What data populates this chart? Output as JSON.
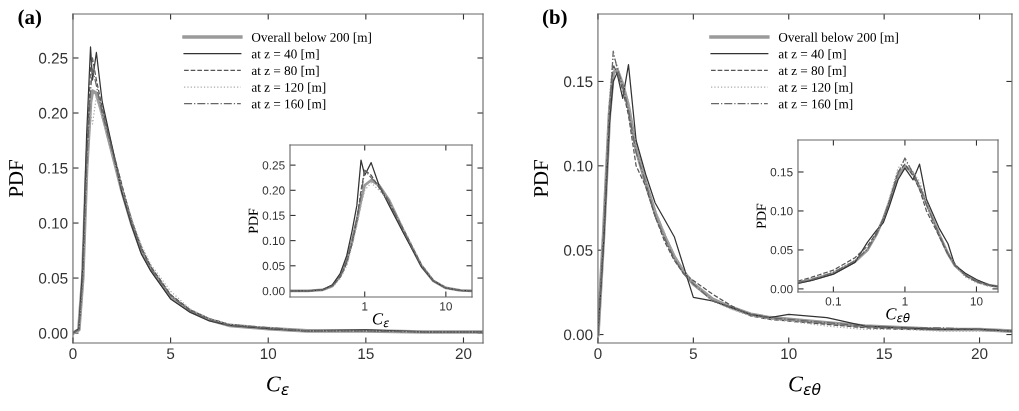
{
  "chart_data": [
    {
      "type": "line",
      "title": "(a)",
      "xlabel": "C$_{ε}$",
      "ylabel": "PDF",
      "xlim": [
        0,
        21
      ],
      "ylim": [
        -0.009,
        0.29
      ],
      "xticks": [
        0,
        5,
        10,
        15,
        20
      ],
      "yticks": [
        {
          "value": 0,
          "label": "0.00"
        },
        {
          "value": 0.05,
          "label": "0.05"
        },
        {
          "value": 0.1,
          "label": "0.10"
        },
        {
          "value": 0.15,
          "label": "0.15"
        },
        {
          "value": 0.2,
          "label": "0.20"
        },
        {
          "value": 0.25,
          "label": "0.25"
        }
      ],
      "legend": "top",
      "grid": false,
      "x": [
        0,
        0.3,
        0.5,
        0.7,
        0.9,
        1.0,
        1.2,
        1.5,
        2,
        2.5,
        3,
        3.5,
        4,
        5,
        6,
        7,
        8,
        10,
        12,
        15,
        18,
        21
      ],
      "series": [
        {
          "name": "Overall below 200 [m]",
          "color": "#9a9a9a",
          "line_style": "solid",
          "values": [
            0,
            0.003,
            0.05,
            0.15,
            0.21,
            0.22,
            0.218,
            0.2,
            0.165,
            0.13,
            0.1,
            0.075,
            0.058,
            0.033,
            0.02,
            0.012,
            0.007,
            0.004,
            0.002,
            0.002,
            0.001,
            0.001
          ]
        },
        {
          "name": "at z = 40 [m]",
          "color": "#333333",
          "line_style": "solid",
          "values": [
            0,
            0.004,
            0.06,
            0.18,
            0.26,
            0.23,
            0.255,
            0.21,
            0.17,
            0.128,
            0.098,
            0.072,
            0.056,
            0.031,
            0.019,
            0.011,
            0.007,
            0.004,
            0.002,
            0.003,
            0.001,
            0.001
          ]
        },
        {
          "name": "at z = 80 [m]",
          "color": "#555555",
          "line_style": "dashed",
          "values": [
            0,
            0.003,
            0.05,
            0.16,
            0.24,
            0.25,
            0.23,
            0.205,
            0.168,
            0.135,
            0.102,
            0.078,
            0.06,
            0.035,
            0.021,
            0.013,
            0.008,
            0.004,
            0.002,
            0.002,
            0.001,
            0.001
          ]
        },
        {
          "name": "at z = 120 [m]",
          "color": "#aaaaaa",
          "line_style": "dotted",
          "values": [
            0,
            0.002,
            0.04,
            0.14,
            0.2,
            0.19,
            0.215,
            0.195,
            0.162,
            0.132,
            0.104,
            0.08,
            0.062,
            0.038,
            0.022,
            0.013,
            0.008,
            0.005,
            0.002,
            0.002,
            0.001,
            0.001
          ]
        },
        {
          "name": "at z = 160 [m]",
          "color": "#666666",
          "line_style": "dashdot",
          "values": [
            0,
            0.003,
            0.05,
            0.15,
            0.22,
            0.24,
            0.225,
            0.2,
            0.166,
            0.13,
            0.1,
            0.076,
            0.058,
            0.034,
            0.02,
            0.012,
            0.007,
            0.005,
            0.002,
            0.002,
            0.001,
            0.001
          ]
        }
      ]
    },
    {
      "type": "line",
      "xlabel": "C$_{ε}$",
      "ylabel": "PDF",
      "log": "x",
      "xlim": [
        0.12,
        21
      ],
      "ylim": [
        -0.012,
        0.29
      ],
      "xticks": [
        1,
        10
      ],
      "yticks": [
        {
          "value": 0,
          "label": "0.00"
        },
        {
          "value": 0.05,
          "label": "0.05"
        },
        {
          "value": 0.1,
          "label": "0.10"
        },
        {
          "value": 0.15,
          "label": "0.15"
        },
        {
          "value": 0.2,
          "label": "0.20"
        },
        {
          "value": 0.25,
          "label": "0.25"
        }
      ],
      "grid": false,
      "x": [
        0.12,
        0.2,
        0.3,
        0.4,
        0.5,
        0.6,
        0.7,
        0.8,
        0.9,
        1.0,
        1.2,
        1.5,
        2,
        3,
        4,
        5,
        7,
        10,
        15,
        21
      ],
      "series": [
        {
          "color": "#9a9a9a",
          "line_style": "solid",
          "values": [
            0,
            0,
            0.002,
            0.01,
            0.03,
            0.06,
            0.1,
            0.14,
            0.18,
            0.21,
            0.22,
            0.21,
            0.18,
            0.12,
            0.08,
            0.05,
            0.02,
            0.006,
            0.001,
            0
          ]
        },
        {
          "color": "#333333",
          "line_style": "solid",
          "values": [
            0,
            0,
            0.002,
            0.012,
            0.035,
            0.07,
            0.12,
            0.17,
            0.26,
            0.23,
            0.255,
            0.21,
            0.17,
            0.115,
            0.078,
            0.048,
            0.02,
            0.006,
            0.001,
            0
          ]
        },
        {
          "color": "#555555",
          "line_style": "dashed",
          "values": [
            0,
            0,
            0.002,
            0.01,
            0.028,
            0.055,
            0.095,
            0.14,
            0.2,
            0.24,
            0.23,
            0.205,
            0.175,
            0.122,
            0.082,
            0.052,
            0.021,
            0.006,
            0.001,
            0
          ]
        },
        {
          "color": "#aaaaaa",
          "line_style": "dotted",
          "values": [
            0,
            0,
            0.001,
            0.008,
            0.025,
            0.05,
            0.09,
            0.13,
            0.17,
            0.2,
            0.215,
            0.2,
            0.18,
            0.125,
            0.085,
            0.053,
            0.022,
            0.007,
            0.001,
            0
          ]
        },
        {
          "color": "#666666",
          "line_style": "dashdot",
          "values": [
            0,
            0,
            0.002,
            0.01,
            0.03,
            0.06,
            0.1,
            0.145,
            0.19,
            0.24,
            0.225,
            0.21,
            0.178,
            0.12,
            0.08,
            0.05,
            0.02,
            0.006,
            0.001,
            0
          ]
        }
      ]
    },
    {
      "type": "line",
      "title": "(b)",
      "xlabel": "C$_{εθ}$",
      "ylabel": "PDF",
      "xlim": [
        0,
        21.7
      ],
      "ylim": [
        -0.005,
        0.19
      ],
      "xticks": [
        0,
        5,
        10,
        15,
        20
      ],
      "yticks": [
        {
          "value": 0,
          "label": "0.00"
        },
        {
          "value": 0.05,
          "label": "0.05"
        },
        {
          "value": 0.1,
          "label": "0.10"
        },
        {
          "value": 0.15,
          "label": "0.15"
        }
      ],
      "legend": "top",
      "grid": false,
      "x": [
        0,
        0.3,
        0.6,
        0.8,
        1.0,
        1.3,
        1.6,
        2,
        2.5,
        3,
        3.5,
        4,
        4.5,
        5,
        6,
        7,
        8,
        9,
        10,
        12,
        14,
        16,
        18,
        20,
        21.7
      ],
      "series": [
        {
          "name": "Overall below 200 [m]",
          "color": "#9a9a9a",
          "line_style": "solid",
          "values": [
            0,
            0.06,
            0.13,
            0.155,
            0.157,
            0.148,
            0.135,
            0.11,
            0.09,
            0.072,
            0.058,
            0.046,
            0.037,
            0.03,
            0.021,
            0.016,
            0.012,
            0.01,
            0.009,
            0.007,
            0.005,
            0.004,
            0.003,
            0.003,
            0.002
          ]
        },
        {
          "name": "at z = 40 [m]",
          "color": "#333333",
          "line_style": "solid",
          "values": [
            0,
            0.055,
            0.125,
            0.15,
            0.155,
            0.14,
            0.16,
            0.115,
            0.095,
            0.078,
            0.068,
            0.058,
            0.04,
            0.022,
            0.02,
            0.016,
            0.012,
            0.01,
            0.012,
            0.01,
            0.005,
            0.004,
            0.003,
            0.003,
            0.002
          ]
        },
        {
          "name": "at z = 80 [m]",
          "color": "#555555",
          "line_style": "dashed",
          "values": [
            0,
            0.06,
            0.135,
            0.16,
            0.155,
            0.145,
            0.13,
            0.1,
            0.088,
            0.07,
            0.055,
            0.044,
            0.036,
            0.032,
            0.024,
            0.017,
            0.011,
            0.009,
            0.008,
            0.006,
            0.004,
            0.003,
            0.003,
            0.003,
            0.002
          ]
        },
        {
          "name": "at z = 120 [m]",
          "color": "#aaaaaa",
          "line_style": "dotted",
          "values": [
            0,
            0.065,
            0.14,
            0.165,
            0.16,
            0.15,
            0.138,
            0.112,
            0.09,
            0.074,
            0.06,
            0.047,
            0.038,
            0.03,
            0.02,
            0.015,
            0.011,
            0.009,
            0.008,
            0.005,
            0.003,
            0.003,
            0.002,
            0.002,
            0.002
          ]
        },
        {
          "name": "at z = 160 [m]",
          "color": "#666666",
          "line_style": "dashdot",
          "values": [
            0,
            0.06,
            0.13,
            0.168,
            0.158,
            0.148,
            0.133,
            0.108,
            0.09,
            0.07,
            0.057,
            0.045,
            0.036,
            0.03,
            0.02,
            0.016,
            0.012,
            0.01,
            0.009,
            0.007,
            0.005,
            0.004,
            0.004,
            0.003,
            0.002
          ]
        }
      ]
    },
    {
      "type": "line",
      "xlabel": "C$_{εθ}$",
      "ylabel": "PDF",
      "log": "x",
      "xlim": [
        0.032,
        20
      ],
      "ylim": [
        -0.004,
        0.191
      ],
      "xticks": [
        {
          "value": 0.1,
          "label": "0.1"
        },
        1,
        10
      ],
      "yticks": [
        {
          "value": 0,
          "label": "0.00"
        },
        {
          "value": 0.05,
          "label": "0.05"
        },
        {
          "value": 0.1,
          "label": "0.10"
        },
        {
          "value": 0.15,
          "label": "0.15"
        }
      ],
      "grid": false,
      "x": [
        0.032,
        0.05,
        0.1,
        0.2,
        0.3,
        0.4,
        0.5,
        0.6,
        0.8,
        1.0,
        1.3,
        1.6,
        2,
        3,
        4,
        5,
        7,
        10,
        15,
        20
      ],
      "series": [
        {
          "color": "#9a9a9a",
          "line_style": "solid",
          "values": [
            0.008,
            0.012,
            0.02,
            0.035,
            0.05,
            0.07,
            0.09,
            0.11,
            0.145,
            0.158,
            0.148,
            0.13,
            0.11,
            0.07,
            0.045,
            0.03,
            0.018,
            0.01,
            0.005,
            0.003
          ]
        },
        {
          "color": "#333333",
          "line_style": "solid",
          "values": [
            0.007,
            0.011,
            0.019,
            0.034,
            0.06,
            0.075,
            0.085,
            0.105,
            0.14,
            0.155,
            0.14,
            0.16,
            0.115,
            0.078,
            0.058,
            0.03,
            0.02,
            0.012,
            0.005,
            0.003
          ]
        },
        {
          "color": "#555555",
          "line_style": "dashed",
          "values": [
            0.01,
            0.015,
            0.024,
            0.04,
            0.055,
            0.072,
            0.09,
            0.112,
            0.15,
            0.16,
            0.145,
            0.128,
            0.1,
            0.068,
            0.044,
            0.032,
            0.017,
            0.009,
            0.004,
            0.003
          ]
        },
        {
          "color": "#aaaaaa",
          "line_style": "dotted",
          "values": [
            0.009,
            0.013,
            0.022,
            0.037,
            0.052,
            0.07,
            0.092,
            0.115,
            0.155,
            0.165,
            0.15,
            0.138,
            0.112,
            0.072,
            0.047,
            0.03,
            0.015,
            0.008,
            0.003,
            0.002
          ]
        },
        {
          "color": "#666666",
          "line_style": "dashdot",
          "values": [
            0.008,
            0.012,
            0.021,
            0.036,
            0.051,
            0.07,
            0.09,
            0.11,
            0.148,
            0.168,
            0.148,
            0.133,
            0.108,
            0.07,
            0.045,
            0.03,
            0.018,
            0.01,
            0.005,
            0.003
          ]
        }
      ]
    }
  ]
}
